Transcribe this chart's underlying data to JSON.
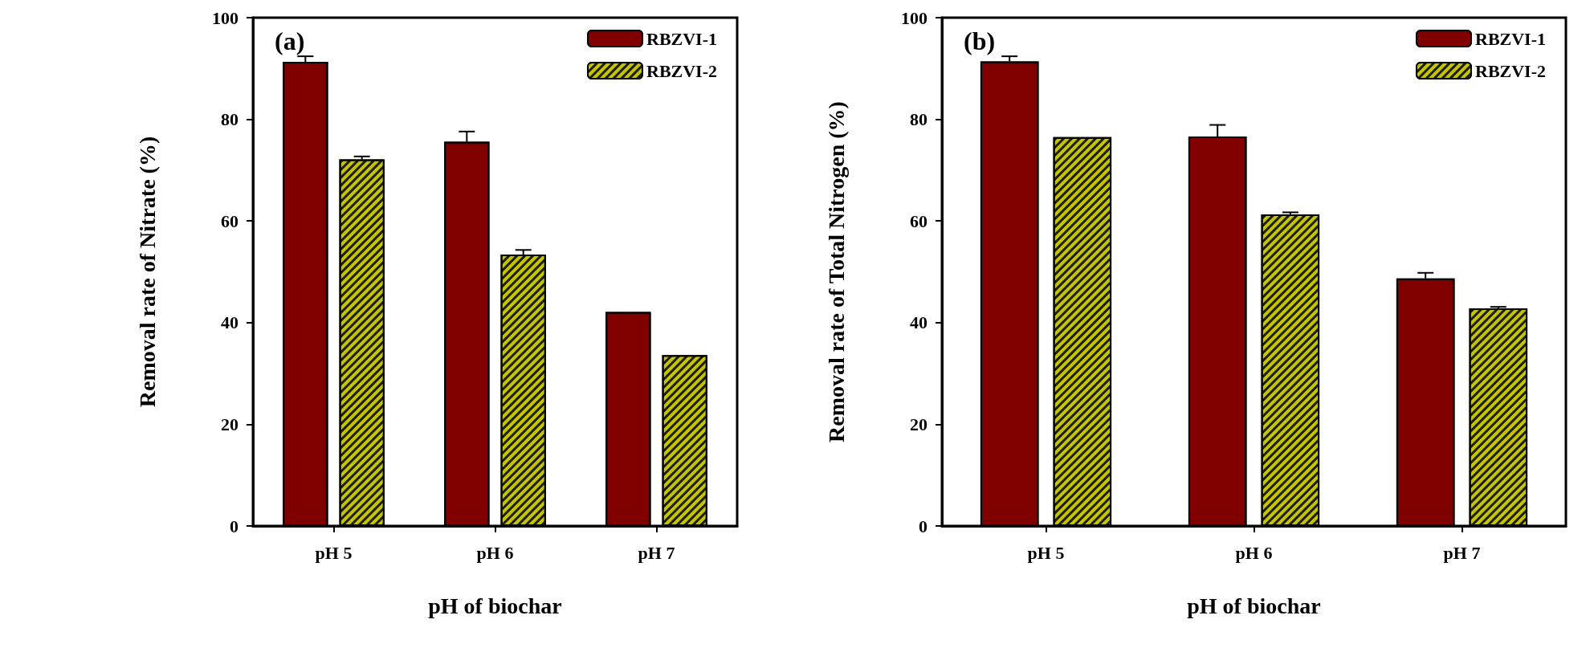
{
  "chart_data": [
    {
      "type": "bar",
      "title": "(a)",
      "xlabel": "pH of biochar",
      "ylabel": "Removal rate of Nitrate (%)",
      "categories": [
        "pH 5",
        "pH 6",
        "pH 7"
      ],
      "ylim": [
        0,
        100
      ],
      "yticks": [
        0,
        20,
        40,
        60,
        80,
        100
      ],
      "grid": false,
      "legend": "top right",
      "series": [
        {
          "name": "RBZVI-1",
          "color": "#800000",
          "values": [
            91.3,
            75.6,
            42.1
          ],
          "errors": [
            1.1,
            2.0,
            null
          ]
        },
        {
          "name": "RBZVI-2",
          "color": "#c4c400",
          "values": [
            72.1,
            53.4,
            33.6
          ],
          "errors": [
            0.6,
            0.9,
            null
          ]
        }
      ]
    },
    {
      "type": "bar",
      "title": "(b)",
      "xlabel": "pH of biochar",
      "ylabel": "Removal rate of Total Nitrogen (%)",
      "categories": [
        "pH 5",
        "pH 6",
        "pH 7"
      ],
      "ylim": [
        0,
        100
      ],
      "yticks": [
        0,
        20,
        40,
        60,
        80,
        100
      ],
      "grid": false,
      "legend": "top right",
      "series": [
        {
          "name": "RBZVI-1",
          "color": "#800000",
          "values": [
            91.4,
            76.6,
            48.7
          ],
          "errors": [
            1.0,
            2.3,
            1.1
          ]
        },
        {
          "name": "RBZVI-2",
          "color": "#c4c400",
          "values": [
            76.5,
            61.3,
            42.8
          ],
          "errors": [
            null,
            0.4,
            0.3
          ]
        }
      ]
    }
  ]
}
